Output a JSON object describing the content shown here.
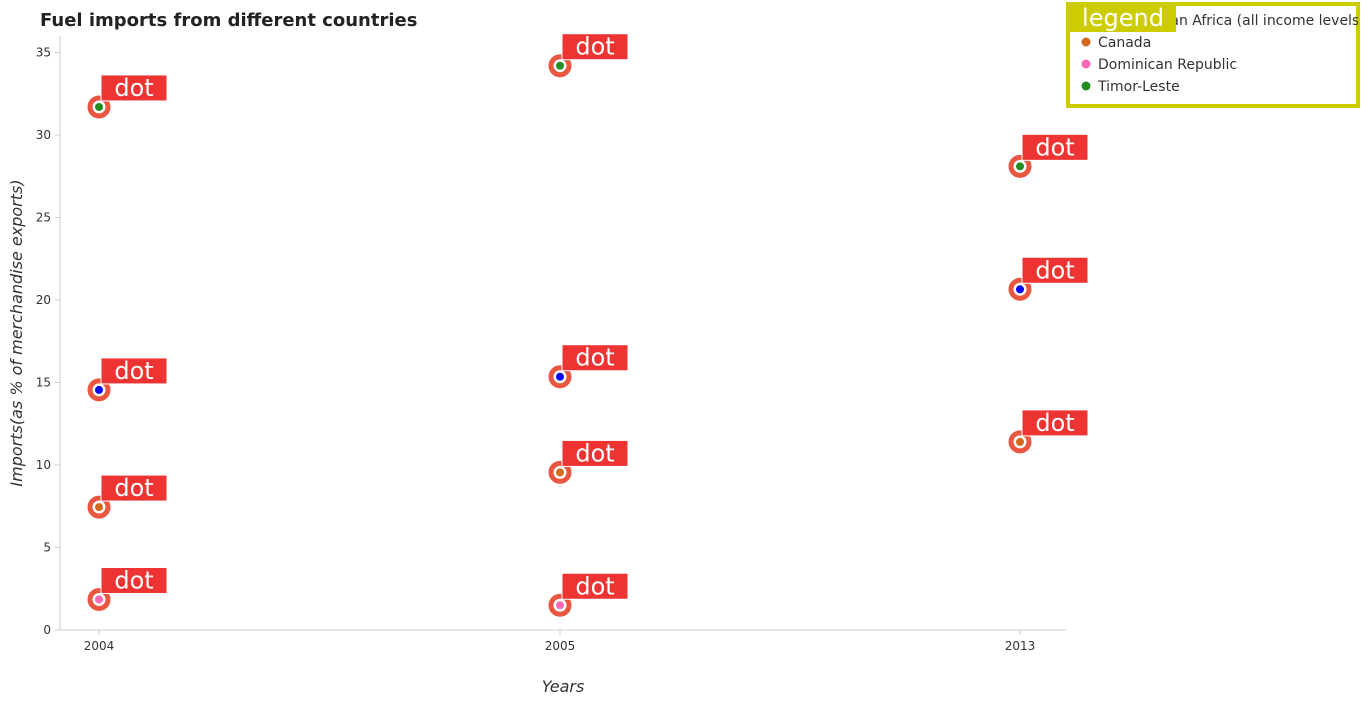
{
  "chart_data": {
    "type": "scatter",
    "title": "Fuel imports from different countries",
    "xlabel": "Years",
    "ylabel": "Imports(as % of merchandise exports)",
    "categories": [
      "2004",
      "2005",
      "2013"
    ],
    "ylim": [
      0,
      36
    ],
    "yticks": [
      "0",
      "5",
      "10",
      "15",
      "20",
      "25",
      "30",
      "35"
    ],
    "grid": false,
    "legend": {
      "title": "legend",
      "placement": "top-right",
      "border_color": "#cccc00"
    },
    "series": [
      {
        "name": "Sub-Saharan Africa (all income levels)",
        "color": "#0000ff",
        "values": [
          14.55,
          15.35,
          20.65
        ]
      },
      {
        "name": "Canada",
        "color": "#d2691e",
        "values": [
          7.45,
          9.55,
          11.4
        ]
      },
      {
        "name": "Dominican Republic",
        "color": "#ff69b4",
        "values": [
          1.85,
          1.5,
          null
        ]
      },
      {
        "name": "Timor-Leste",
        "color": "#228b22",
        "values": [
          31.7,
          34.2,
          28.1
        ]
      }
    ],
    "annotation_text": "dot",
    "annotation_color": "#ee3333",
    "marker_ring_color": "#e8452c"
  }
}
